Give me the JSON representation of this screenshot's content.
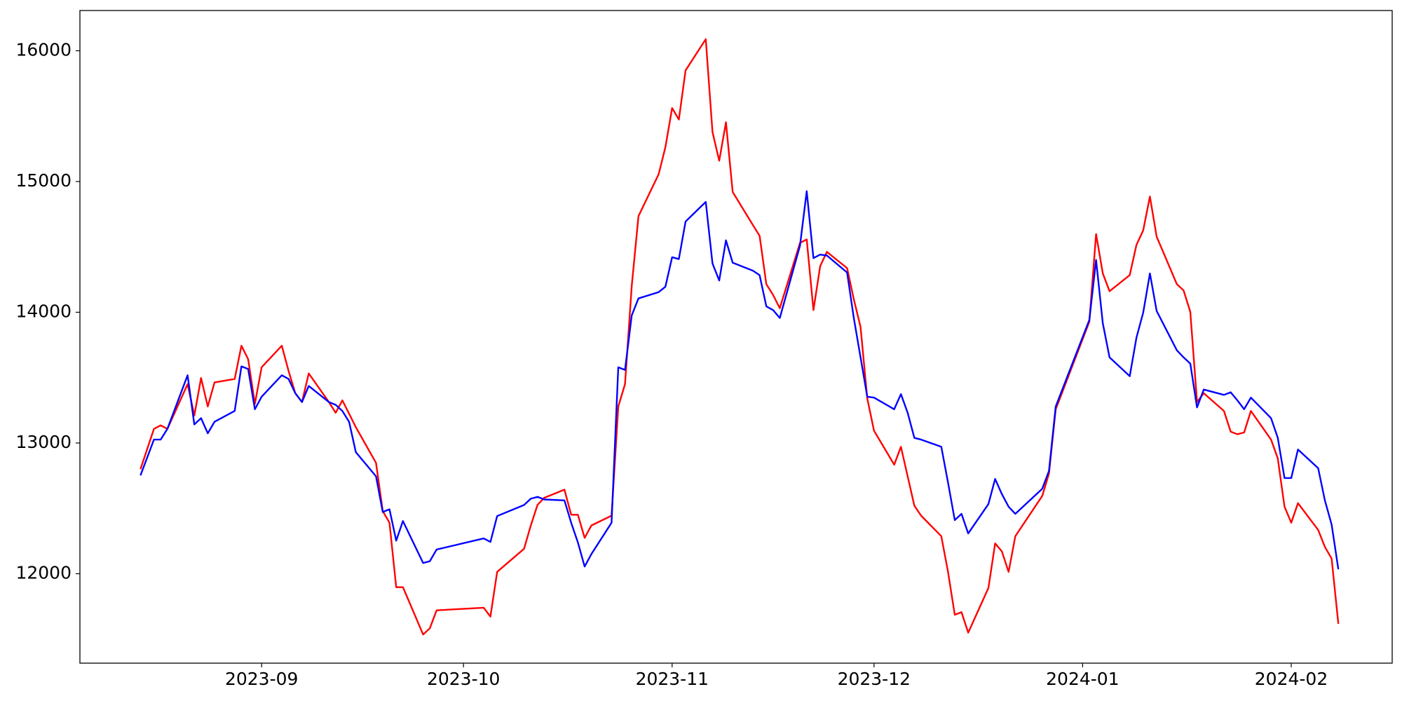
{
  "chart_data": {
    "type": "line",
    "x": [
      "2023-08-14",
      "2023-08-16",
      "2023-08-17",
      "2023-08-18",
      "2023-08-21",
      "2023-08-22",
      "2023-08-23",
      "2023-08-24",
      "2023-08-25",
      "2023-08-28",
      "2023-08-29",
      "2023-08-30",
      "2023-08-31",
      "2023-09-01",
      "2023-09-04",
      "2023-09-05",
      "2023-09-06",
      "2023-09-07",
      "2023-09-08",
      "2023-09-11",
      "2023-09-12",
      "2023-09-13",
      "2023-09-14",
      "2023-09-15",
      "2023-09-18",
      "2023-09-19",
      "2023-09-20",
      "2023-09-21",
      "2023-09-22",
      "2023-09-25",
      "2023-09-26",
      "2023-09-27",
      "2023-10-04",
      "2023-10-05",
      "2023-10-06",
      "2023-10-10",
      "2023-10-11",
      "2023-10-12",
      "2023-10-13",
      "2023-10-16",
      "2023-10-17",
      "2023-10-18",
      "2023-10-19",
      "2023-10-20",
      "2023-10-23",
      "2023-10-24",
      "2023-10-25",
      "2023-10-26",
      "2023-10-27",
      "2023-10-30",
      "2023-10-31",
      "2023-11-01",
      "2023-11-02",
      "2023-11-03",
      "2023-11-06",
      "2023-11-07",
      "2023-11-08",
      "2023-11-09",
      "2023-11-10",
      "2023-11-13",
      "2023-11-14",
      "2023-11-15",
      "2023-11-16",
      "2023-11-17",
      "2023-11-20",
      "2023-11-21",
      "2023-11-22",
      "2023-11-23",
      "2023-11-24",
      "2023-11-27",
      "2023-11-28",
      "2023-11-29",
      "2023-11-30",
      "2023-12-01",
      "2023-12-04",
      "2023-12-05",
      "2023-12-06",
      "2023-12-07",
      "2023-12-08",
      "2023-12-11",
      "2023-12-12",
      "2023-12-13",
      "2023-12-14",
      "2023-12-15",
      "2023-12-18",
      "2023-12-19",
      "2023-12-20",
      "2023-12-21",
      "2023-12-22",
      "2023-12-26",
      "2023-12-27",
      "2023-12-28",
      "2024-01-02",
      "2024-01-03",
      "2024-01-04",
      "2024-01-05",
      "2024-01-08",
      "2024-01-09",
      "2024-01-10",
      "2024-01-11",
      "2024-01-12",
      "2024-01-15",
      "2024-01-16",
      "2024-01-17",
      "2024-01-18",
      "2024-01-19",
      "2024-01-22",
      "2024-01-23",
      "2024-01-24",
      "2024-01-25",
      "2024-01-26",
      "2024-01-29",
      "2024-01-30",
      "2024-01-31",
      "2024-02-01",
      "2024-02-02",
      "2024-02-05",
      "2024-02-06",
      "2024-02-07",
      "2024-02-08"
    ],
    "series": [
      {
        "color": "#ff0000",
        "values": [
          12800,
          13108,
          13135,
          13108,
          13450,
          13210,
          13497,
          13279,
          13463,
          13490,
          13744,
          13641,
          13299,
          13579,
          13744,
          13552,
          13381,
          13313,
          13532,
          13313,
          13231,
          13326,
          13224,
          13121,
          12848,
          12479,
          12390,
          11897,
          11897,
          11535,
          11583,
          11720,
          11740,
          11672,
          12014,
          12191,
          12369,
          12527,
          12581,
          12643,
          12451,
          12451,
          12274,
          12369,
          12444,
          13279,
          13450,
          14202,
          14735,
          15056,
          15262,
          15562,
          15474,
          15850,
          16089,
          15378,
          15159,
          15453,
          14920,
          14667,
          14585,
          14215,
          14133,
          14031,
          14530,
          14557,
          14017,
          14352,
          14462,
          14338,
          14099,
          13887,
          13340,
          13094,
          12834,
          12971,
          12745,
          12520,
          12444,
          12287,
          12014,
          11686,
          11706,
          11549,
          11891,
          12232,
          12171,
          12014,
          12287,
          12595,
          12766,
          13258,
          13928,
          14598,
          14297,
          14161,
          14284,
          14516,
          14626,
          14885,
          14578,
          14215,
          14167,
          14003,
          13313,
          13381,
          13245,
          13087,
          13067,
          13080,
          13245,
          13026,
          12882,
          12513,
          12390,
          12540,
          12335,
          12205,
          12116,
          11617
        ]
      },
      {
        "color": "#0000ff",
        "values": [
          12752,
          13026,
          13026,
          13108,
          13518,
          13142,
          13190,
          13074,
          13162,
          13245,
          13586,
          13566,
          13258,
          13354,
          13518,
          13490,
          13381,
          13313,
          13436,
          13313,
          13292,
          13245,
          13162,
          12930,
          12745,
          12472,
          12493,
          12253,
          12403,
          12082,
          12096,
          12185,
          12270,
          12243,
          12441,
          12526,
          12574,
          12588,
          12568,
          12561,
          12390,
          12239,
          12055,
          12150,
          12390,
          13579,
          13559,
          13976,
          14106,
          14154,
          14195,
          14421,
          14407,
          14694,
          14844,
          14373,
          14243,
          14550,
          14379,
          14318,
          14284,
          14045,
          14017,
          13956,
          14509,
          14926,
          14414,
          14441,
          14434,
          14304,
          13956,
          13655,
          13354,
          13347,
          13258,
          13374,
          13231,
          13039,
          13026,
          12971,
          12697,
          12410,
          12458,
          12308,
          12533,
          12725,
          12609,
          12513,
          12458,
          12650,
          12786,
          13279,
          13942,
          14400,
          13915,
          13655,
          13511,
          13806,
          13997,
          14297,
          14010,
          13709,
          13655,
          13607,
          13272,
          13409,
          13368,
          13388,
          13326,
          13258,
          13347,
          13190,
          13039,
          12732,
          12732,
          12950,
          12807,
          12561,
          12376,
          12034
        ]
      }
    ],
    "xlim": [
      "2023-08-05",
      "2024-02-16"
    ],
    "xticks": [
      {
        "value": "2023-09-01",
        "label": "2023-09"
      },
      {
        "value": "2023-10-01",
        "label": "2023-10"
      },
      {
        "value": "2023-11-01",
        "label": "2023-11"
      },
      {
        "value": "2023-12-01",
        "label": "2023-12"
      },
      {
        "value": "2024-01-01",
        "label": "2024-01"
      },
      {
        "value": "2024-02-01",
        "label": "2024-02"
      }
    ],
    "ylim": [
      11316,
      16308
    ],
    "yticks": [
      12000,
      13000,
      14000,
      15000,
      16000
    ],
    "grid": false
  }
}
